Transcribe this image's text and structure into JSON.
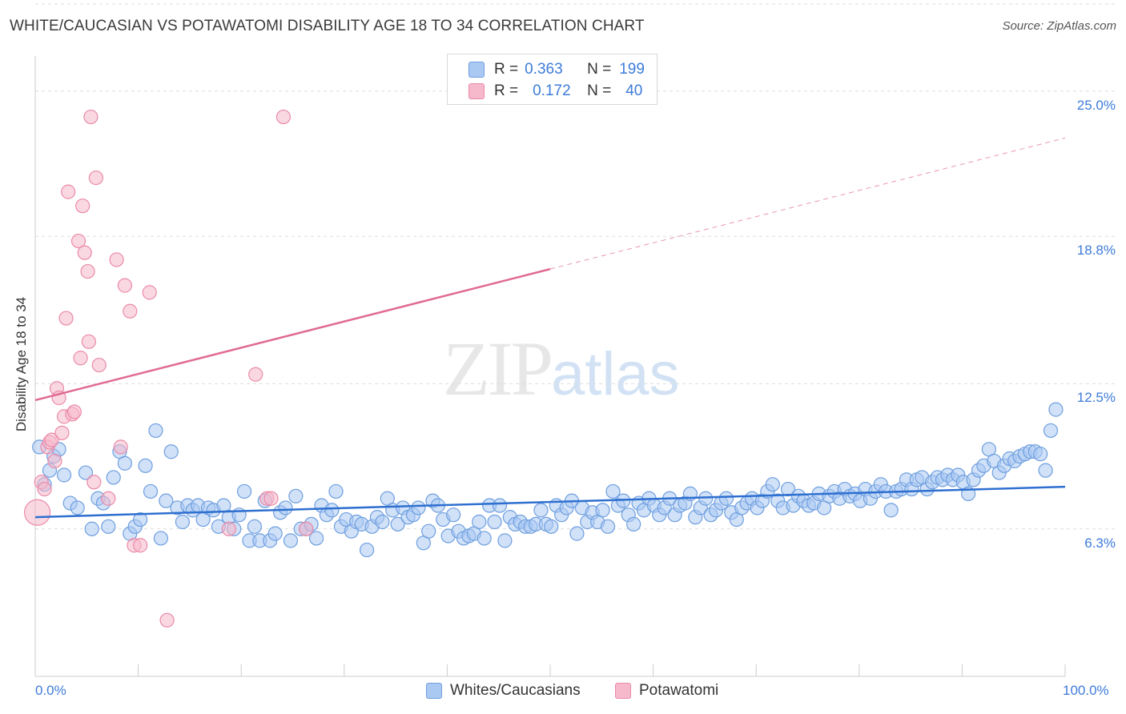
{
  "title": "WHITE/CAUCASIAN VS POTAWATOMI DISABILITY AGE 18 TO 34 CORRELATION CHART",
  "source": "Source: ZipAtlas.com",
  "watermark": {
    "zip": "ZIP",
    "atlas": "atlas"
  },
  "legend": {
    "rows": [
      {
        "r_label": "R =",
        "r_value": "0.363",
        "n_label": "N =",
        "n_value": "199"
      },
      {
        "r_label": "R =",
        "r_value": "0.172",
        "n_label": "N =",
        "n_value": "40"
      }
    ]
  },
  "colors": {
    "blue_fill": "#a9c8f2",
    "blue_stroke": "#6f9fdf",
    "blue_line": "#2e6fd0",
    "pink_fill": "#f6b8cb",
    "pink_stroke": "#ea8aa8",
    "pink_line": "#e06a92",
    "tick_text": "#3d7bd9",
    "grid": "#dddddd"
  },
  "chart_data": {
    "type": "scatter",
    "title": "WHITE/CAUCASIAN VS POTAWATOMI DISABILITY AGE 18 TO 34 CORRELATION CHART",
    "xlabel": "",
    "ylabel": "Disability Age 18 to 34",
    "xlim": [
      0,
      100
    ],
    "ylim": [
      0,
      26.5
    ],
    "x_tick_labels": [
      "0.0%",
      "100.0%"
    ],
    "y_ticks": [
      6.3,
      12.5,
      18.8,
      25.0
    ],
    "y_tick_labels": [
      "6.3%",
      "12.5%",
      "18.8%",
      "25.0%"
    ],
    "grid": true,
    "legend_position": "top-center",
    "series": [
      {
        "name": "Whites/Caucasians",
        "color": "#a9c8f2",
        "trend": {
          "x": [
            0,
            100
          ],
          "y": [
            6.8,
            8.1
          ]
        },
        "points": [
          [
            0.4,
            9.8
          ],
          [
            0.9,
            8.2
          ],
          [
            1.4,
            8.8
          ],
          [
            1.8,
            9.4
          ],
          [
            2.3,
            9.7
          ],
          [
            2.8,
            8.6
          ],
          [
            3.4,
            7.4
          ],
          [
            4.1,
            7.2
          ],
          [
            4.9,
            8.7
          ],
          [
            5.5,
            6.3
          ],
          [
            6.1,
            7.6
          ],
          [
            6.6,
            7.4
          ],
          [
            7.1,
            6.4
          ],
          [
            7.6,
            8.5
          ],
          [
            8.2,
            9.6
          ],
          [
            8.7,
            9.1
          ],
          [
            9.2,
            6.1
          ],
          [
            9.7,
            6.4
          ],
          [
            10.2,
            6.7
          ],
          [
            10.7,
            9.0
          ],
          [
            11.2,
            7.9
          ],
          [
            11.7,
            10.5
          ],
          [
            12.2,
            5.9
          ],
          [
            12.7,
            7.5
          ],
          [
            13.2,
            9.6
          ],
          [
            13.8,
            7.2
          ],
          [
            14.3,
            6.6
          ],
          [
            14.8,
            7.3
          ],
          [
            15.3,
            7.1
          ],
          [
            15.8,
            7.3
          ],
          [
            16.3,
            6.7
          ],
          [
            16.8,
            7.2
          ],
          [
            17.3,
            7.1
          ],
          [
            17.8,
            6.4
          ],
          [
            18.3,
            7.3
          ],
          [
            18.8,
            6.8
          ],
          [
            19.3,
            6.3
          ],
          [
            19.8,
            6.9
          ],
          [
            20.3,
            7.9
          ],
          [
            20.8,
            5.8
          ],
          [
            21.3,
            6.4
          ],
          [
            21.8,
            5.8
          ],
          [
            22.3,
            7.5
          ],
          [
            22.8,
            5.8
          ],
          [
            23.3,
            6.1
          ],
          [
            23.8,
            7.0
          ],
          [
            24.3,
            7.2
          ],
          [
            24.8,
            5.8
          ],
          [
            25.3,
            7.7
          ],
          [
            25.8,
            6.3
          ],
          [
            26.3,
            6.3
          ],
          [
            26.8,
            6.5
          ],
          [
            27.3,
            5.9
          ],
          [
            27.8,
            7.3
          ],
          [
            28.3,
            6.9
          ],
          [
            28.8,
            7.1
          ],
          [
            29.2,
            7.9
          ],
          [
            29.7,
            6.4
          ],
          [
            30.2,
            6.7
          ],
          [
            30.7,
            6.2
          ],
          [
            31.2,
            6.6
          ],
          [
            31.7,
            6.5
          ],
          [
            32.2,
            5.4
          ],
          [
            32.7,
            6.4
          ],
          [
            33.2,
            6.8
          ],
          [
            33.7,
            6.6
          ],
          [
            34.2,
            7.6
          ],
          [
            34.7,
            7.1
          ],
          [
            35.2,
            6.5
          ],
          [
            35.7,
            7.2
          ],
          [
            36.2,
            6.8
          ],
          [
            36.7,
            6.9
          ],
          [
            37.2,
            7.2
          ],
          [
            37.7,
            5.7
          ],
          [
            38.2,
            6.2
          ],
          [
            38.6,
            7.5
          ],
          [
            39.1,
            7.3
          ],
          [
            39.6,
            6.7
          ],
          [
            40.1,
            6.0
          ],
          [
            40.6,
            6.9
          ],
          [
            41.1,
            6.2
          ],
          [
            41.6,
            5.9
          ],
          [
            42.1,
            6.0
          ],
          [
            42.6,
            6.1
          ],
          [
            43.1,
            6.6
          ],
          [
            43.6,
            5.9
          ],
          [
            44.1,
            7.3
          ],
          [
            44.6,
            6.6
          ],
          [
            45.1,
            7.3
          ],
          [
            45.6,
            5.8
          ],
          [
            46.1,
            6.8
          ],
          [
            46.6,
            6.5
          ],
          [
            47.1,
            6.6
          ],
          [
            47.6,
            6.4
          ],
          [
            48.1,
            6.4
          ],
          [
            48.6,
            6.5
          ],
          [
            49.1,
            7.1
          ],
          [
            49.6,
            6.5
          ],
          [
            50.1,
            6.4
          ],
          [
            50.6,
            7.3
          ],
          [
            51.1,
            6.9
          ],
          [
            51.6,
            7.2
          ],
          [
            52.1,
            7.5
          ],
          [
            52.6,
            6.1
          ],
          [
            53.1,
            7.2
          ],
          [
            53.6,
            6.6
          ],
          [
            54.1,
            7.0
          ],
          [
            54.6,
            6.6
          ],
          [
            55.1,
            7.1
          ],
          [
            55.6,
            6.4
          ],
          [
            56.1,
            7.9
          ],
          [
            56.6,
            7.3
          ],
          [
            57.1,
            7.5
          ],
          [
            57.6,
            6.9
          ],
          [
            58.1,
            6.5
          ],
          [
            58.6,
            7.4
          ],
          [
            59.1,
            7.1
          ],
          [
            59.6,
            7.6
          ],
          [
            60.1,
            7.3
          ],
          [
            60.6,
            6.9
          ],
          [
            61.1,
            7.2
          ],
          [
            61.6,
            7.6
          ],
          [
            62.1,
            6.9
          ],
          [
            62.6,
            7.3
          ],
          [
            63.1,
            7.4
          ],
          [
            63.6,
            7.8
          ],
          [
            64.1,
            6.8
          ],
          [
            64.6,
            7.2
          ],
          [
            65.1,
            7.6
          ],
          [
            65.6,
            6.9
          ],
          [
            66.1,
            7.1
          ],
          [
            66.6,
            7.4
          ],
          [
            67.1,
            7.6
          ],
          [
            67.6,
            7.0
          ],
          [
            68.1,
            6.7
          ],
          [
            68.6,
            7.2
          ],
          [
            69.1,
            7.4
          ],
          [
            69.6,
            7.6
          ],
          [
            70.1,
            7.2
          ],
          [
            70.6,
            7.5
          ],
          [
            71.1,
            7.9
          ],
          [
            71.6,
            8.2
          ],
          [
            72.1,
            7.5
          ],
          [
            72.6,
            7.2
          ],
          [
            73.1,
            8.0
          ],
          [
            73.6,
            7.3
          ],
          [
            74.1,
            7.7
          ],
          [
            74.6,
            7.5
          ],
          [
            75.1,
            7.3
          ],
          [
            75.6,
            7.4
          ],
          [
            76.1,
            7.8
          ],
          [
            76.6,
            7.2
          ],
          [
            77.1,
            7.7
          ],
          [
            77.6,
            7.9
          ],
          [
            78.1,
            7.6
          ],
          [
            78.6,
            8.0
          ],
          [
            79.1,
            7.7
          ],
          [
            79.6,
            7.8
          ],
          [
            80.1,
            7.5
          ],
          [
            80.6,
            8.0
          ],
          [
            81.1,
            7.6
          ],
          [
            81.6,
            7.9
          ],
          [
            82.1,
            8.2
          ],
          [
            82.6,
            7.9
          ],
          [
            83.1,
            7.1
          ],
          [
            83.6,
            7.9
          ],
          [
            84.1,
            8.0
          ],
          [
            84.6,
            8.4
          ],
          [
            85.1,
            8.0
          ],
          [
            85.6,
            8.4
          ],
          [
            86.1,
            8.5
          ],
          [
            86.6,
            8.0
          ],
          [
            87.1,
            8.3
          ],
          [
            87.6,
            8.5
          ],
          [
            88.1,
            8.4
          ],
          [
            88.6,
            8.6
          ],
          [
            89.1,
            8.4
          ],
          [
            89.6,
            8.6
          ],
          [
            90.1,
            8.3
          ],
          [
            90.6,
            7.8
          ],
          [
            91.1,
            8.4
          ],
          [
            91.6,
            8.8
          ],
          [
            92.1,
            9.0
          ],
          [
            92.6,
            9.7
          ],
          [
            93.1,
            9.2
          ],
          [
            93.6,
            8.7
          ],
          [
            94.1,
            9.0
          ],
          [
            94.6,
            9.3
          ],
          [
            95.1,
            9.2
          ],
          [
            95.6,
            9.4
          ],
          [
            96.1,
            9.5
          ],
          [
            96.6,
            9.6
          ],
          [
            97.1,
            9.6
          ],
          [
            97.6,
            9.5
          ],
          [
            98.1,
            8.8
          ],
          [
            98.6,
            10.5
          ],
          [
            99.1,
            11.4
          ]
        ]
      },
      {
        "name": "Potawatomi",
        "color": "#f6b8cb",
        "trend": {
          "x": [
            0,
            50
          ],
          "y": [
            11.8,
            17.4
          ]
        },
        "trend_dashed": {
          "x": [
            50,
            100
          ],
          "y": [
            17.4,
            23.0
          ]
        },
        "points": [
          [
            0.2,
            7.0
          ],
          [
            0.6,
            8.3
          ],
          [
            0.9,
            8.0
          ],
          [
            1.2,
            9.8
          ],
          [
            1.4,
            10.0
          ],
          [
            1.6,
            10.1
          ],
          [
            1.9,
            9.2
          ],
          [
            2.1,
            12.3
          ],
          [
            2.3,
            11.9
          ],
          [
            2.6,
            10.4
          ],
          [
            2.8,
            11.1
          ],
          [
            3.0,
            15.3
          ],
          [
            3.2,
            20.7
          ],
          [
            3.6,
            11.2
          ],
          [
            3.8,
            11.3
          ],
          [
            4.2,
            18.6
          ],
          [
            4.4,
            13.6
          ],
          [
            4.6,
            20.1
          ],
          [
            4.8,
            18.1
          ],
          [
            5.1,
            17.3
          ],
          [
            5.2,
            14.3
          ],
          [
            5.4,
            23.9
          ],
          [
            5.7,
            8.3
          ],
          [
            5.9,
            21.3
          ],
          [
            6.2,
            13.3
          ],
          [
            7.1,
            7.6
          ],
          [
            7.9,
            17.8
          ],
          [
            8.3,
            9.8
          ],
          [
            8.7,
            16.7
          ],
          [
            9.2,
            15.6
          ],
          [
            9.6,
            5.6
          ],
          [
            10.2,
            5.6
          ],
          [
            11.1,
            16.4
          ],
          [
            12.8,
            2.4
          ],
          [
            18.8,
            6.3
          ],
          [
            21.4,
            12.9
          ],
          [
            22.5,
            7.6
          ],
          [
            22.9,
            7.6
          ],
          [
            24.1,
            23.9
          ],
          [
            26.3,
            6.3
          ]
        ]
      }
    ]
  },
  "bottom_legend": [
    "Whites/Caucasians",
    "Potawatomi"
  ]
}
